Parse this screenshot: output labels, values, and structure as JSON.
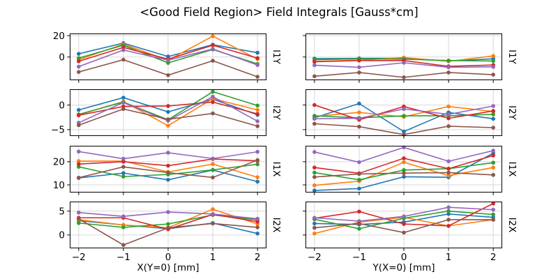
{
  "title": "<Good Field Region> Field Integrals [Gauss*cm]",
  "layout": {
    "xlabels": [
      "X(Y=0) [mm]",
      "Y(X=0) [mm]"
    ],
    "rows": [
      "I1Y",
      "I2Y",
      "I1X",
      "I2X"
    ],
    "grid": true,
    "legend": "none",
    "background": "#ffffff",
    "grid_color": "#d7d7d7",
    "spine_color": "#000000"
  },
  "chart_data": [
    {
      "type": "line",
      "row": 0,
      "col": 0,
      "right_label": "I1Y",
      "x": [
        -2,
        -1,
        0,
        1,
        2
      ],
      "xlim": [
        -2.2,
        2.2
      ],
      "xticks": [
        -2,
        -1,
        0,
        1,
        2
      ],
      "ylim": [
        -21.7,
        22
      ],
      "yticks": [
        0,
        20
      ],
      "series": [
        {
          "name": "series-1-blue",
          "color": "#1f77b4",
          "values": [
            3,
            13,
            0.5,
            11.5,
            4
          ]
        },
        {
          "name": "series-2-orange",
          "color": "#ff7f0e",
          "values": [
            -2.5,
            12,
            -3,
            19.5,
            -2
          ]
        },
        {
          "name": "series-3-green",
          "color": "#2ca02c",
          "values": [
            -1,
            11,
            -5.5,
            7,
            -6.5
          ]
        },
        {
          "name": "series-4-red",
          "color": "#d62728",
          "values": [
            -4,
            9,
            -2,
            11,
            -1
          ]
        },
        {
          "name": "series-5-purple",
          "color": "#9467bd",
          "values": [
            -9,
            6.5,
            -3,
            7.5,
            -7.5
          ]
        },
        {
          "name": "series-6-brown",
          "color": "#8c564b",
          "values": [
            -14,
            -2.5,
            -17,
            -3.5,
            -18.5
          ]
        }
      ]
    },
    {
      "type": "line",
      "row": 0,
      "col": 1,
      "right_label": "I1Y",
      "x": [
        -2,
        -1,
        0,
        1,
        2
      ],
      "xlim": [
        -2.2,
        2.2
      ],
      "xticks": [
        -2,
        -1,
        0,
        1,
        2
      ],
      "ylim": [
        -21.7,
        22
      ],
      "yticks": [
        0,
        20
      ],
      "series": [
        {
          "name": "series-1-blue",
          "color": "#1f77b4",
          "values": [
            -1.5,
            -1.3,
            -1.3,
            -3.7,
            -1.7
          ]
        },
        {
          "name": "series-2-orange",
          "color": "#ff7f0e",
          "values": [
            -4,
            -3,
            -0.5,
            -4,
            1
          ]
        },
        {
          "name": "series-3-green",
          "color": "#2ca02c",
          "values": [
            -2.5,
            -1.7,
            -2,
            -3.3,
            -3.7
          ]
        },
        {
          "name": "series-4-red",
          "color": "#d62728",
          "values": [
            -4.5,
            -3.3,
            -3.3,
            -8.7,
            -7.5
          ]
        },
        {
          "name": "series-5-purple",
          "color": "#9467bd",
          "values": [
            -7.7,
            -9.6,
            -5.4,
            -9.6,
            -9.2
          ]
        },
        {
          "name": "series-6-brown",
          "color": "#8c564b",
          "values": [
            -18,
            -14.5,
            -19,
            -14.5,
            -16.5
          ]
        }
      ]
    },
    {
      "type": "line",
      "row": 1,
      "col": 0,
      "right_label": "I2Y",
      "x": [
        -2,
        -1,
        0,
        1,
        2
      ],
      "xlim": [
        -2.2,
        2.2
      ],
      "xticks": [
        -2,
        -1,
        0,
        1,
        2
      ],
      "ylim": [
        -6.3,
        3.2
      ],
      "yticks": [
        -5,
        0
      ],
      "series": [
        {
          "name": "series-1-blue",
          "color": "#1f77b4",
          "values": [
            -1,
            1.5,
            -1.4,
            1.2,
            -2
          ]
        },
        {
          "name": "series-2-orange",
          "color": "#ff7f0e",
          "values": [
            -2,
            0.7,
            -4.2,
            1.3,
            -1
          ]
        },
        {
          "name": "series-3-green",
          "color": "#2ca02c",
          "values": [
            -1.9,
            0.6,
            -3,
            2.7,
            -0.1
          ]
        },
        {
          "name": "series-4-red",
          "color": "#d62728",
          "values": [
            -2.1,
            -0.3,
            -0.2,
            0.6,
            -1.8
          ]
        },
        {
          "name": "series-5-purple",
          "color": "#9467bd",
          "values": [
            -3.6,
            0.5,
            -3.2,
            1.7,
            -3.3
          ]
        },
        {
          "name": "series-6-brown",
          "color": "#8c564b",
          "values": [
            -4.1,
            -0.8,
            -2.9,
            -1.7,
            -4.3
          ]
        }
      ]
    },
    {
      "type": "line",
      "row": 1,
      "col": 1,
      "right_label": "I2Y",
      "x": [
        -2,
        -1,
        0,
        1,
        2
      ],
      "xlim": [
        -2.2,
        2.2
      ],
      "xticks": [
        -2,
        -1,
        0,
        1,
        2
      ],
      "ylim": [
        -6.3,
        3.2
      ],
      "yticks": [
        -5,
        0
      ],
      "series": [
        {
          "name": "series-1-blue",
          "color": "#1f77b4",
          "values": [
            -2.6,
            0.3,
            -5.4,
            -1.5,
            -2.8
          ]
        },
        {
          "name": "series-2-orange",
          "color": "#ff7f0e",
          "values": [
            -2.3,
            -1.5,
            -2.4,
            -0.3,
            -1.3
          ]
        },
        {
          "name": "series-3-green",
          "color": "#2ca02c",
          "values": [
            -2.2,
            -2.6,
            -2.2,
            -2.2,
            -1.9
          ]
        },
        {
          "name": "series-4-red",
          "color": "#d62728",
          "values": [
            0,
            -3,
            -0.3,
            -2.7,
            -1.2
          ]
        },
        {
          "name": "series-5-purple",
          "color": "#9467bd",
          "values": [
            -2.8,
            -2.7,
            -0.8,
            -1.9,
            -0.2
          ]
        },
        {
          "name": "series-6-brown",
          "color": "#8c564b",
          "values": [
            -3.8,
            -4.4,
            -6,
            -4.3,
            -4.6
          ]
        }
      ]
    },
    {
      "type": "line",
      "row": 2,
      "col": 0,
      "right_label": "I1X",
      "x": [
        -2,
        -1,
        0,
        1,
        2
      ],
      "xlim": [
        -2.2,
        2.2
      ],
      "xticks": [
        -2,
        -1,
        0,
        1,
        2
      ],
      "ylim": [
        6.7,
        26.9
      ],
      "yticks": [
        10,
        20
      ],
      "series": [
        {
          "name": "series-1-blue",
          "color": "#1f77b4",
          "values": [
            13,
            15.1,
            12.2,
            16.4,
            11.4
          ]
        },
        {
          "name": "series-2-orange",
          "color": "#ff7f0e",
          "values": [
            20.3,
            20.3,
            15.6,
            19,
            13.3
          ]
        },
        {
          "name": "series-3-green",
          "color": "#2ca02c",
          "values": [
            17.8,
            13.6,
            14.5,
            16.5,
            18.9
          ]
        },
        {
          "name": "series-4-red",
          "color": "#d62728",
          "values": [
            19,
            20,
            18.3,
            21.2,
            20.4
          ]
        },
        {
          "name": "series-5-purple",
          "color": "#9467bd",
          "values": [
            24.4,
            21.3,
            23.9,
            21.4,
            24.3
          ]
        },
        {
          "name": "series-6-brown",
          "color": "#8c564b",
          "values": [
            13.1,
            17.8,
            15.3,
            13.2,
            20.7
          ]
        }
      ]
    },
    {
      "type": "line",
      "row": 2,
      "col": 1,
      "right_label": "I1X",
      "x": [
        -2,
        -1,
        0,
        1,
        2
      ],
      "xlim": [
        -2.2,
        2.2
      ],
      "xticks": [
        -2,
        -1,
        0,
        1,
        2
      ],
      "ylim": [
        6.7,
        26.9
      ],
      "yticks": [
        10,
        20
      ],
      "series": [
        {
          "name": "series-1-blue",
          "color": "#1f77b4",
          "values": [
            7.6,
            8.4,
            13.5,
            13.3,
            23.7
          ]
        },
        {
          "name": "series-2-orange",
          "color": "#ff7f0e",
          "values": [
            9.8,
            11.6,
            19.8,
            14,
            17.5
          ]
        },
        {
          "name": "series-3-green",
          "color": "#2ca02c",
          "values": [
            15.3,
            12.2,
            16.4,
            17,
            19.6
          ]
        },
        {
          "name": "series-4-red",
          "color": "#d62728",
          "values": [
            17.5,
            15,
            21.5,
            17,
            22.7
          ]
        },
        {
          "name": "series-5-purple",
          "color": "#9467bd",
          "values": [
            24.2,
            19.8,
            26.2,
            20.2,
            24.8
          ]
        },
        {
          "name": "series-6-brown",
          "color": "#8c564b",
          "values": [
            13.4,
            14.7,
            15.1,
            15.3,
            14.3
          ]
        }
      ]
    },
    {
      "type": "line",
      "row": 3,
      "col": 0,
      "right_label": "I2X",
      "x": [
        -2,
        -1,
        0,
        1,
        2
      ],
      "xlim": [
        -2.2,
        2.2
      ],
      "xticks": [
        -2,
        -1,
        0,
        1,
        2
      ],
      "ylim": [
        -2.8,
        7.0
      ],
      "yticks": [
        0,
        5
      ],
      "series": [
        {
          "name": "series-1-blue",
          "color": "#1f77b4",
          "values": [
            3,
            2.1,
            1.3,
            2.5,
            0.3
          ]
        },
        {
          "name": "series-2-orange",
          "color": "#ff7f0e",
          "values": [
            3.2,
            2.1,
            1.5,
            5.4,
            2.3
          ]
        },
        {
          "name": "series-3-green",
          "color": "#2ca02c",
          "values": [
            2.5,
            1.6,
            2.3,
            4.2,
            3.2
          ]
        },
        {
          "name": "series-4-red",
          "color": "#d62728",
          "values": [
            3.6,
            3.6,
            1.2,
            4.3,
            2.8
          ]
        },
        {
          "name": "series-5-purple",
          "color": "#9467bd",
          "values": [
            4.7,
            3.9,
            4.8,
            4.4,
            3.4
          ]
        },
        {
          "name": "series-6-brown",
          "color": "#8c564b",
          "values": [
            3.4,
            -2.1,
            1.5,
            2.4,
            1.6
          ]
        }
      ]
    },
    {
      "type": "line",
      "row": 3,
      "col": 1,
      "right_label": "I2X",
      "x": [
        -2,
        -1,
        0,
        1,
        2
      ],
      "xlim": [
        -2.2,
        2.2
      ],
      "xticks": [
        -2,
        -1,
        0,
        1,
        2
      ],
      "ylim": [
        -2.8,
        7.0
      ],
      "yticks": [
        0,
        5
      ],
      "series": [
        {
          "name": "series-1-blue",
          "color": "#1f77b4",
          "values": [
            2.4,
            2.2,
            2.7,
            4.4,
            3.7
          ]
        },
        {
          "name": "series-2-orange",
          "color": "#ff7f0e",
          "values": [
            0.3,
            2.7,
            3.7,
            1.9,
            3.2
          ]
        },
        {
          "name": "series-3-green",
          "color": "#2ca02c",
          "values": [
            3.3,
            1.3,
            3.5,
            5,
            4.3
          ]
        },
        {
          "name": "series-4-red",
          "color": "#d62728",
          "values": [
            3.5,
            4.9,
            2.3,
            1.9,
            6.6
          ]
        },
        {
          "name": "series-5-purple",
          "color": "#9467bd",
          "values": [
            3.6,
            2.9,
            3.9,
            5.8,
            5.3
          ]
        },
        {
          "name": "series-6-brown",
          "color": "#8c564b",
          "values": [
            1.5,
            2.4,
            0.5,
            3.2,
            3.2
          ]
        }
      ]
    }
  ]
}
